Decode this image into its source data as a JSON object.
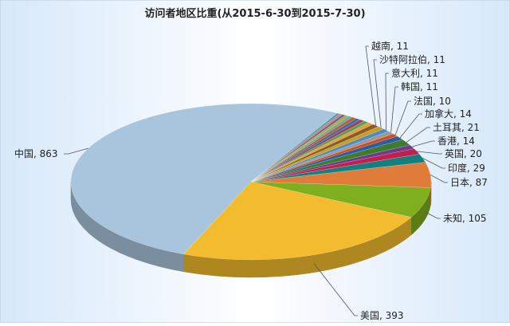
{
  "chart_data": {
    "type": "pie3d",
    "title": "访问者地区比重(从2015-6-30到2015-7-30)",
    "categories": [
      "美国",
      "未知",
      "日本",
      "印度",
      "英国",
      "香港",
      "土耳其",
      "加拿大",
      "法国",
      "韩国",
      "意大利",
      "沙特阿拉伯",
      "越南",
      null,
      null,
      null,
      null,
      null,
      null,
      null,
      null,
      null,
      null,
      "中国"
    ],
    "values": [
      393,
      105,
      87,
      29,
      20,
      14,
      21,
      14,
      10,
      11,
      11,
      11,
      11,
      9,
      8,
      8,
      7,
      7,
      6,
      6,
      5,
      5,
      4,
      863
    ],
    "colors": [
      "#f2bc2e",
      "#7fae1e",
      "#e07c3a",
      "#138080",
      "#c2204a",
      "#6c3c8c",
      "#3e7c2c",
      "#2c5ca2",
      "#d24c1c",
      "#9a9a9a",
      "#4a8ac8",
      "#c8a020",
      "#8a5a2a",
      "#e0a040",
      "#5aa050",
      "#a04060",
      "#3070b0",
      "#c06020",
      "#70a0c0",
      "#b0b030",
      "#6060a0",
      "#d08080",
      "#40a0a0",
      "#a9c5dd"
    ]
  }
}
